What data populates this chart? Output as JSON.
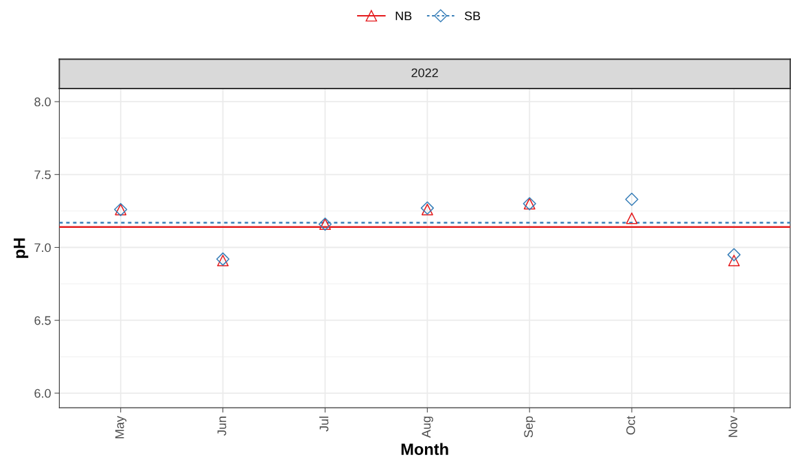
{
  "chart_data": {
    "type": "scatter",
    "title": "2022",
    "xlabel": "Month",
    "ylabel": "pH",
    "categories": [
      "May",
      "Jun",
      "Jul",
      "Aug",
      "Sep",
      "Oct",
      "Nov"
    ],
    "series": [
      {
        "name": "NB",
        "color": "#e41a1c",
        "marker": "triangle",
        "line_style": "solid",
        "values": [
          7.26,
          6.91,
          7.16,
          7.26,
          7.3,
          7.2,
          6.91
        ]
      },
      {
        "name": "SB",
        "color": "#377eb8",
        "marker": "diamond",
        "line_style": "dashed",
        "values": [
          7.26,
          6.92,
          7.16,
          7.27,
          7.3,
          7.33,
          6.95
        ]
      }
    ],
    "ref_lines": [
      {
        "axis": "y",
        "value": 7.14,
        "color": "#e41a1c",
        "line_style": "solid"
      },
      {
        "axis": "y",
        "value": 7.17,
        "color": "#377eb8",
        "line_style": "dashed"
      }
    ],
    "ylim": [
      5.9,
      8.09
    ],
    "yticks": [
      {
        "value": 6.0,
        "label": "6.0"
      },
      {
        "value": 6.5,
        "label": "6.5"
      },
      {
        "value": 7.0,
        "label": "7.0"
      },
      {
        "value": 7.5,
        "label": "7.5"
      },
      {
        "value": 8.0,
        "label": "8.0"
      }
    ],
    "grid": true,
    "legend": "top"
  }
}
